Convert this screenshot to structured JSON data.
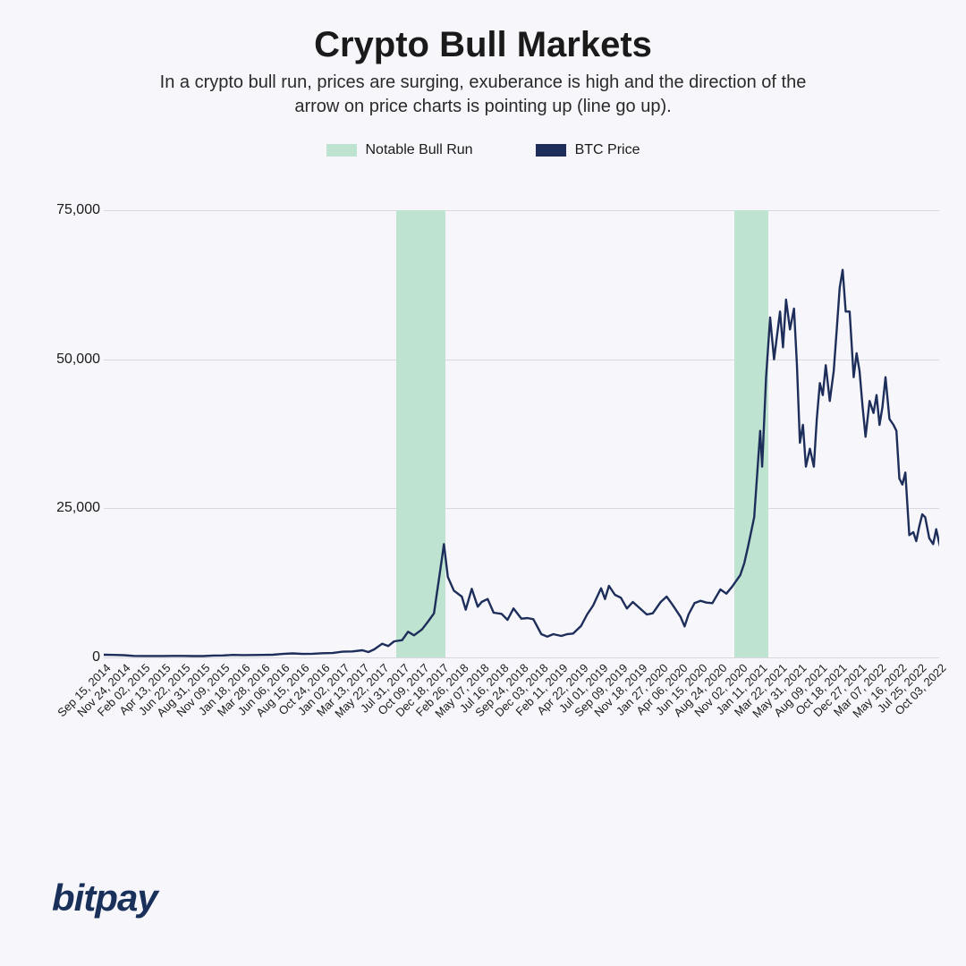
{
  "title": "Crypto Bull Markets",
  "subtitle": "In a crypto bull run, prices are surging, exuberance is high and the direction of the arrow on price charts is pointing up (line go up).",
  "legend": {
    "band_label": "Notable Bull Run",
    "line_label": "BTC Price"
  },
  "brand": "bitpay",
  "chart": {
    "type": "line",
    "background_color": "#f6f6fb",
    "grid_color": "#d8d8de",
    "line_color": "#1e2e5a",
    "line_width": 2.4,
    "band_color": "#bfe3d1",
    "ylim": [
      0,
      75000
    ],
    "yticks": [
      0,
      25000,
      50000,
      75000
    ],
    "ytick_labels": [
      "0",
      "25,000",
      "50,000",
      "75,000"
    ],
    "x_labels": [
      "Sep 15, 2014",
      "Nov 24, 2014",
      "Feb 02, 2015",
      "Apr 13, 2015",
      "Jun 22, 2015",
      "Aug 31, 2015",
      "Nov 09, 2015",
      "Jan 18, 2016",
      "Mar 28, 2016",
      "Jun 06, 2016",
      "Aug 15, 2016",
      "Oct 24, 2016",
      "Jan 02, 2017",
      "Mar 13, 2017",
      "May 22, 2017",
      "Jul 31, 2017",
      "Oct 09, 2017",
      "Dec 18, 2017",
      "Feb 26, 2018",
      "May 07, 2018",
      "Jul 16, 2018",
      "Sep 24, 2018",
      "Dec 03, 2018",
      "Feb 11, 2019",
      "Apr 22, 2019",
      "Jul 01, 2019",
      "Sep 09, 2019",
      "Nov 18, 2019",
      "Jan 27, 2020",
      "Apr 06, 2020",
      "Jun 15, 2020",
      "Aug 24, 2020",
      "Nov 02, 2020",
      "Jan 11, 2021",
      "Mar 22, 2021",
      "May 31, 2021",
      "Aug 09, 2021",
      "Oct 18, 2021",
      "Dec 27, 2021",
      "Mar 07, 2022",
      "May 16, 2022",
      "Jul 25, 2022",
      "Oct 03, 2022"
    ],
    "bull_bands": [
      {
        "start_idx": 14.7,
        "end_idx": 17.2
      },
      {
        "start_idx": 31.7,
        "end_idx": 33.4
      }
    ],
    "series": [
      450,
      380,
      240,
      240,
      250,
      230,
      330,
      390,
      420,
      580,
      580,
      700,
      960,
      1200,
      2300,
      2900,
      4700,
      19000,
      10200,
      9300,
      7300,
      6500,
      3900,
      3600,
      5300,
      11600,
      10000,
      8100,
      9300,
      6800,
      9500,
      11400,
      13800,
      38000,
      58000,
      36000,
      46000,
      62000,
      48000,
      39000,
      30000,
      22000,
      19200
    ],
    "series_detail": [
      [
        0.0,
        450
      ],
      [
        0.5,
        420
      ],
      [
        1.0,
        380
      ],
      [
        1.5,
        260
      ],
      [
        2.0,
        240
      ],
      [
        2.5,
        240
      ],
      [
        3.0,
        240
      ],
      [
        3.5,
        260
      ],
      [
        4.0,
        250
      ],
      [
        4.5,
        230
      ],
      [
        5.0,
        230
      ],
      [
        5.5,
        310
      ],
      [
        6.0,
        330
      ],
      [
        6.5,
        420
      ],
      [
        7.0,
        390
      ],
      [
        7.5,
        410
      ],
      [
        8.0,
        420
      ],
      [
        8.5,
        450
      ],
      [
        9.0,
        580
      ],
      [
        9.5,
        670
      ],
      [
        10.0,
        580
      ],
      [
        10.5,
        610
      ],
      [
        11.0,
        700
      ],
      [
        11.5,
        740
      ],
      [
        12.0,
        960
      ],
      [
        12.5,
        1000
      ],
      [
        13.0,
        1200
      ],
      [
        13.3,
        900
      ],
      [
        13.6,
        1350
      ],
      [
        14.0,
        2300
      ],
      [
        14.3,
        1900
      ],
      [
        14.6,
        2700
      ],
      [
        15.0,
        2900
      ],
      [
        15.3,
        4300
      ],
      [
        15.6,
        3700
      ],
      [
        16.0,
        4700
      ],
      [
        16.3,
        6000
      ],
      [
        16.6,
        7400
      ],
      [
        17.0,
        16500
      ],
      [
        17.1,
        19000
      ],
      [
        17.3,
        13500
      ],
      [
        17.6,
        11200
      ],
      [
        18.0,
        10200
      ],
      [
        18.2,
        8000
      ],
      [
        18.5,
        11500
      ],
      [
        18.8,
        8500
      ],
      [
        19.0,
        9300
      ],
      [
        19.3,
        9800
      ],
      [
        19.6,
        7500
      ],
      [
        20.0,
        7300
      ],
      [
        20.3,
        6300
      ],
      [
        20.6,
        8200
      ],
      [
        21.0,
        6500
      ],
      [
        21.3,
        6600
      ],
      [
        21.6,
        6400
      ],
      [
        22.0,
        3900
      ],
      [
        22.3,
        3500
      ],
      [
        22.6,
        3900
      ],
      [
        23.0,
        3600
      ],
      [
        23.3,
        3900
      ],
      [
        23.6,
        4000
      ],
      [
        24.0,
        5300
      ],
      [
        24.3,
        7200
      ],
      [
        24.6,
        8700
      ],
      [
        25.0,
        11600
      ],
      [
        25.2,
        9800
      ],
      [
        25.4,
        12000
      ],
      [
        25.7,
        10500
      ],
      [
        26.0,
        10000
      ],
      [
        26.3,
        8200
      ],
      [
        26.6,
        9300
      ],
      [
        27.0,
        8100
      ],
      [
        27.3,
        7200
      ],
      [
        27.6,
        7400
      ],
      [
        28.0,
        9300
      ],
      [
        28.3,
        10200
      ],
      [
        28.6,
        8800
      ],
      [
        29.0,
        6800
      ],
      [
        29.2,
        5200
      ],
      [
        29.4,
        7200
      ],
      [
        29.7,
        9100
      ],
      [
        30.0,
        9500
      ],
      [
        30.3,
        9200
      ],
      [
        30.6,
        9100
      ],
      [
        31.0,
        11400
      ],
      [
        31.3,
        10700
      ],
      [
        31.6,
        11900
      ],
      [
        32.0,
        13800
      ],
      [
        32.2,
        15800
      ],
      [
        32.4,
        18700
      ],
      [
        32.7,
        23500
      ],
      [
        33.0,
        38000
      ],
      [
        33.1,
        32000
      ],
      [
        33.3,
        47000
      ],
      [
        33.5,
        57000
      ],
      [
        33.7,
        50000
      ],
      [
        34.0,
        58000
      ],
      [
        34.15,
        52000
      ],
      [
        34.3,
        60000
      ],
      [
        34.5,
        55000
      ],
      [
        34.7,
        58500
      ],
      [
        34.85,
        49000
      ],
      [
        35.0,
        36000
      ],
      [
        35.15,
        39000
      ],
      [
        35.3,
        32000
      ],
      [
        35.5,
        35000
      ],
      [
        35.7,
        32000
      ],
      [
        35.85,
        40000
      ],
      [
        36.0,
        46000
      ],
      [
        36.15,
        44000
      ],
      [
        36.3,
        49000
      ],
      [
        36.5,
        43000
      ],
      [
        36.7,
        48000
      ],
      [
        36.85,
        55000
      ],
      [
        37.0,
        62000
      ],
      [
        37.15,
        65000
      ],
      [
        37.3,
        58000
      ],
      [
        37.5,
        58000
      ],
      [
        37.7,
        47000
      ],
      [
        37.85,
        51000
      ],
      [
        38.0,
        48000
      ],
      [
        38.15,
        42000
      ],
      [
        38.3,
        37000
      ],
      [
        38.5,
        43000
      ],
      [
        38.7,
        41000
      ],
      [
        38.85,
        44000
      ],
      [
        39.0,
        39000
      ],
      [
        39.15,
        42000
      ],
      [
        39.3,
        47000
      ],
      [
        39.5,
        40000
      ],
      [
        39.7,
        39000
      ],
      [
        39.85,
        38000
      ],
      [
        40.0,
        30000
      ],
      [
        40.15,
        29000
      ],
      [
        40.3,
        31000
      ],
      [
        40.5,
        20500
      ],
      [
        40.7,
        21000
      ],
      [
        40.85,
        19500
      ],
      [
        41.0,
        22000
      ],
      [
        41.15,
        24000
      ],
      [
        41.3,
        23500
      ],
      [
        41.5,
        20000
      ],
      [
        41.7,
        19000
      ],
      [
        41.85,
        21500
      ],
      [
        42.0,
        19200
      ],
      [
        42.1,
        18000
      ],
      [
        42.2,
        19500
      ]
    ]
  }
}
